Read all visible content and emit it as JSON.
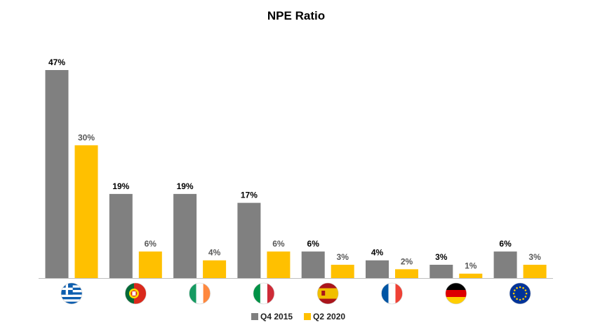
{
  "chart_data": {
    "type": "bar",
    "title": "NPE Ratio",
    "xlabel": "",
    "ylabel": "",
    "ylim": [
      0,
      50
    ],
    "grid": false,
    "legend_position": "bottom",
    "categories": [
      "greece-flag",
      "portugal-flag",
      "ireland-flag",
      "italy-flag",
      "spain-flag",
      "france-flag",
      "germany-flag",
      "eu-flag"
    ],
    "series": [
      {
        "name": "Q4 2015",
        "color": "#808080",
        "values": [
          47,
          19,
          19,
          17,
          6,
          4,
          3,
          6
        ],
        "labels": [
          "47%",
          "19%",
          "19%",
          "17%",
          "6%",
          "4%",
          "3%",
          "6%"
        ]
      },
      {
        "name": "Q2 2020",
        "color": "#FFC000",
        "values": [
          30,
          6,
          4,
          6,
          3,
          2,
          1,
          3
        ],
        "labels": [
          "30%",
          "6%",
          "4%",
          "6%",
          "3%",
          "2%",
          "1%",
          "3%"
        ]
      }
    ]
  }
}
